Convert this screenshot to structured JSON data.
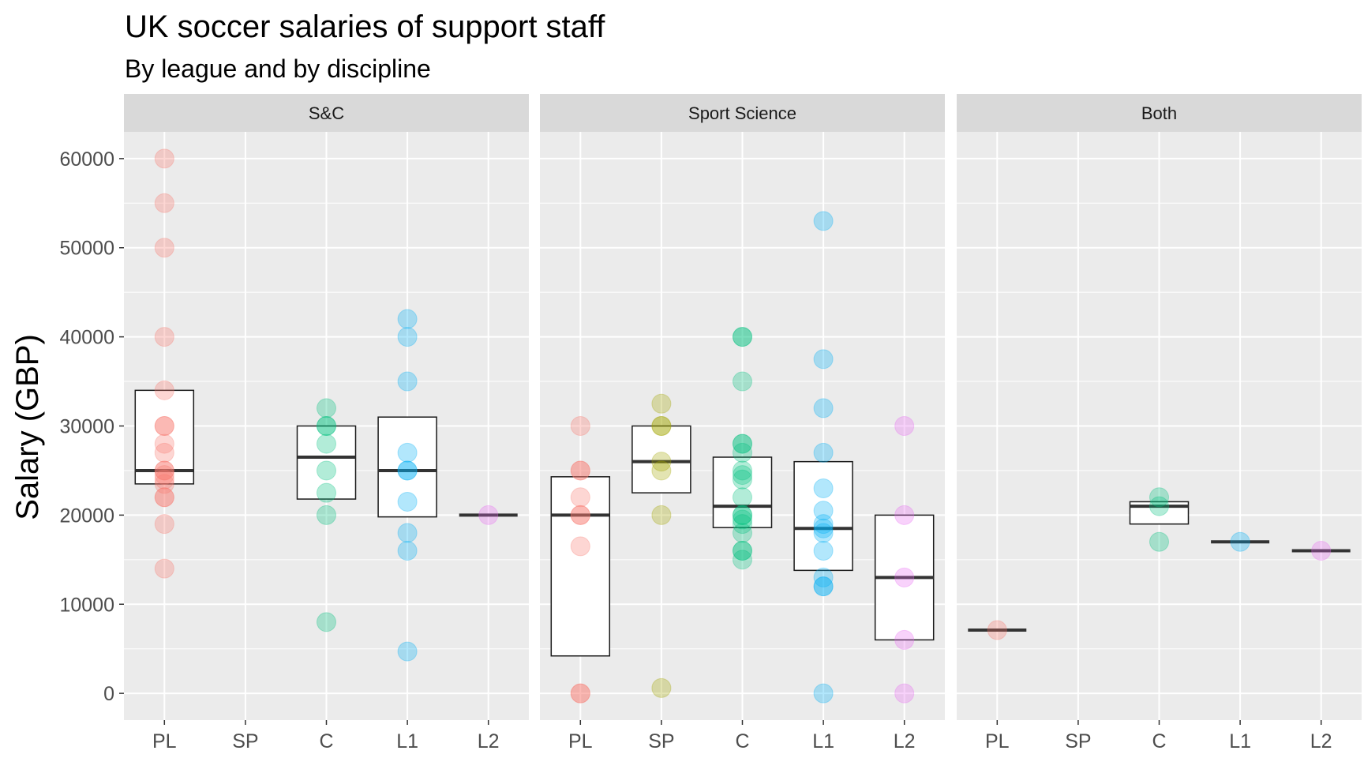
{
  "chart_data": {
    "type": "boxplot-with-points",
    "title": "UK soccer salaries of support staff",
    "subtitle": "By league and by discipline",
    "ylabel": "Salary (GBP)",
    "xlabel": "",
    "ylim": [
      -3000,
      63000
    ],
    "yticks": [
      0,
      10000,
      20000,
      30000,
      40000,
      50000,
      60000
    ],
    "categories": [
      "PL",
      "SP",
      "C",
      "L1",
      "L2"
    ],
    "colors": {
      "PL": "#F8766D",
      "SP": "#A3A500",
      "C": "#00BF7D",
      "L1": "#00B0F6",
      "L2": "#E76BF3"
    },
    "grid": true,
    "legend": "none",
    "facets": [
      {
        "label": "S&C",
        "groups": [
          {
            "category": "PL",
            "box": {
              "q1": 23500,
              "median": 25000,
              "q3": 34000
            },
            "points": [
              60000,
              55000,
              50000,
              40000,
              34000,
              30000,
              30000,
              28000,
              27000,
              25000,
              25000,
              24500,
              24000,
              23500,
              22000,
              22000,
              19000,
              14000
            ]
          },
          {
            "category": "SP",
            "box": null,
            "points": []
          },
          {
            "category": "C",
            "box": {
              "q1": 21800,
              "median": 26500,
              "q3": 30000
            },
            "points": [
              32000,
              30000,
              30000,
              28000,
              25000,
              22500,
              20000,
              8000
            ]
          },
          {
            "category": "L1",
            "box": {
              "q1": 19800,
              "median": 25000,
              "q3": 31000
            },
            "points": [
              42000,
              40000,
              35000,
              27000,
              25000,
              25000,
              21500,
              18000,
              16000,
              4700
            ]
          },
          {
            "category": "L2",
            "box": {
              "q1": 20000,
              "median": 20000,
              "q3": 20000
            },
            "points": [
              20000
            ]
          }
        ]
      },
      {
        "label": "Sport Science",
        "groups": [
          {
            "category": "PL",
            "box": {
              "q1": 4200,
              "median": 20000,
              "q3": 24300
            },
            "points": [
              30000,
              25000,
              25000,
              22000,
              20000,
              20000,
              16500,
              0,
              0
            ]
          },
          {
            "category": "SP",
            "box": {
              "q1": 22500,
              "median": 26000,
              "q3": 30000
            },
            "points": [
              32500,
              30000,
              30000,
              26000,
              25000,
              20000,
              600
            ]
          },
          {
            "category": "C",
            "box": {
              "q1": 18600,
              "median": 21000,
              "q3": 26500
            },
            "points": [
              40000,
              40000,
              35000,
              28000,
              28000,
              27000,
              25000,
              24500,
              24000,
              22000,
              20000,
              20000,
              19500,
              19000,
              18000,
              16000,
              16000,
              15000
            ]
          },
          {
            "category": "L1",
            "box": {
              "q1": 13800,
              "median": 18500,
              "q3": 26000
            },
            "points": [
              53000,
              37500,
              32000,
              27000,
              23000,
              20500,
              19000,
              18500,
              18000,
              16000,
              13000,
              12000,
              12000,
              0
            ]
          },
          {
            "category": "L2",
            "box": {
              "q1": 6000,
              "median": 13000,
              "q3": 20000
            },
            "points": [
              30000,
              20000,
              13000,
              6000,
              0
            ]
          }
        ]
      },
      {
        "label": "Both",
        "groups": [
          {
            "category": "PL",
            "box": {
              "q1": 7100,
              "median": 7100,
              "q3": 7100
            },
            "points": [
              7100
            ]
          },
          {
            "category": "SP",
            "box": null,
            "points": []
          },
          {
            "category": "C",
            "box": {
              "q1": 19000,
              "median": 21000,
              "q3": 21500
            },
            "points": [
              22000,
              21000,
              17000
            ]
          },
          {
            "category": "L1",
            "box": {
              "q1": 17000,
              "median": 17000,
              "q3": 17000
            },
            "points": [
              17000
            ]
          },
          {
            "category": "L2",
            "box": {
              "q1": 16000,
              "median": 16000,
              "q3": 16000
            },
            "points": [
              16000
            ]
          }
        ]
      }
    ]
  }
}
